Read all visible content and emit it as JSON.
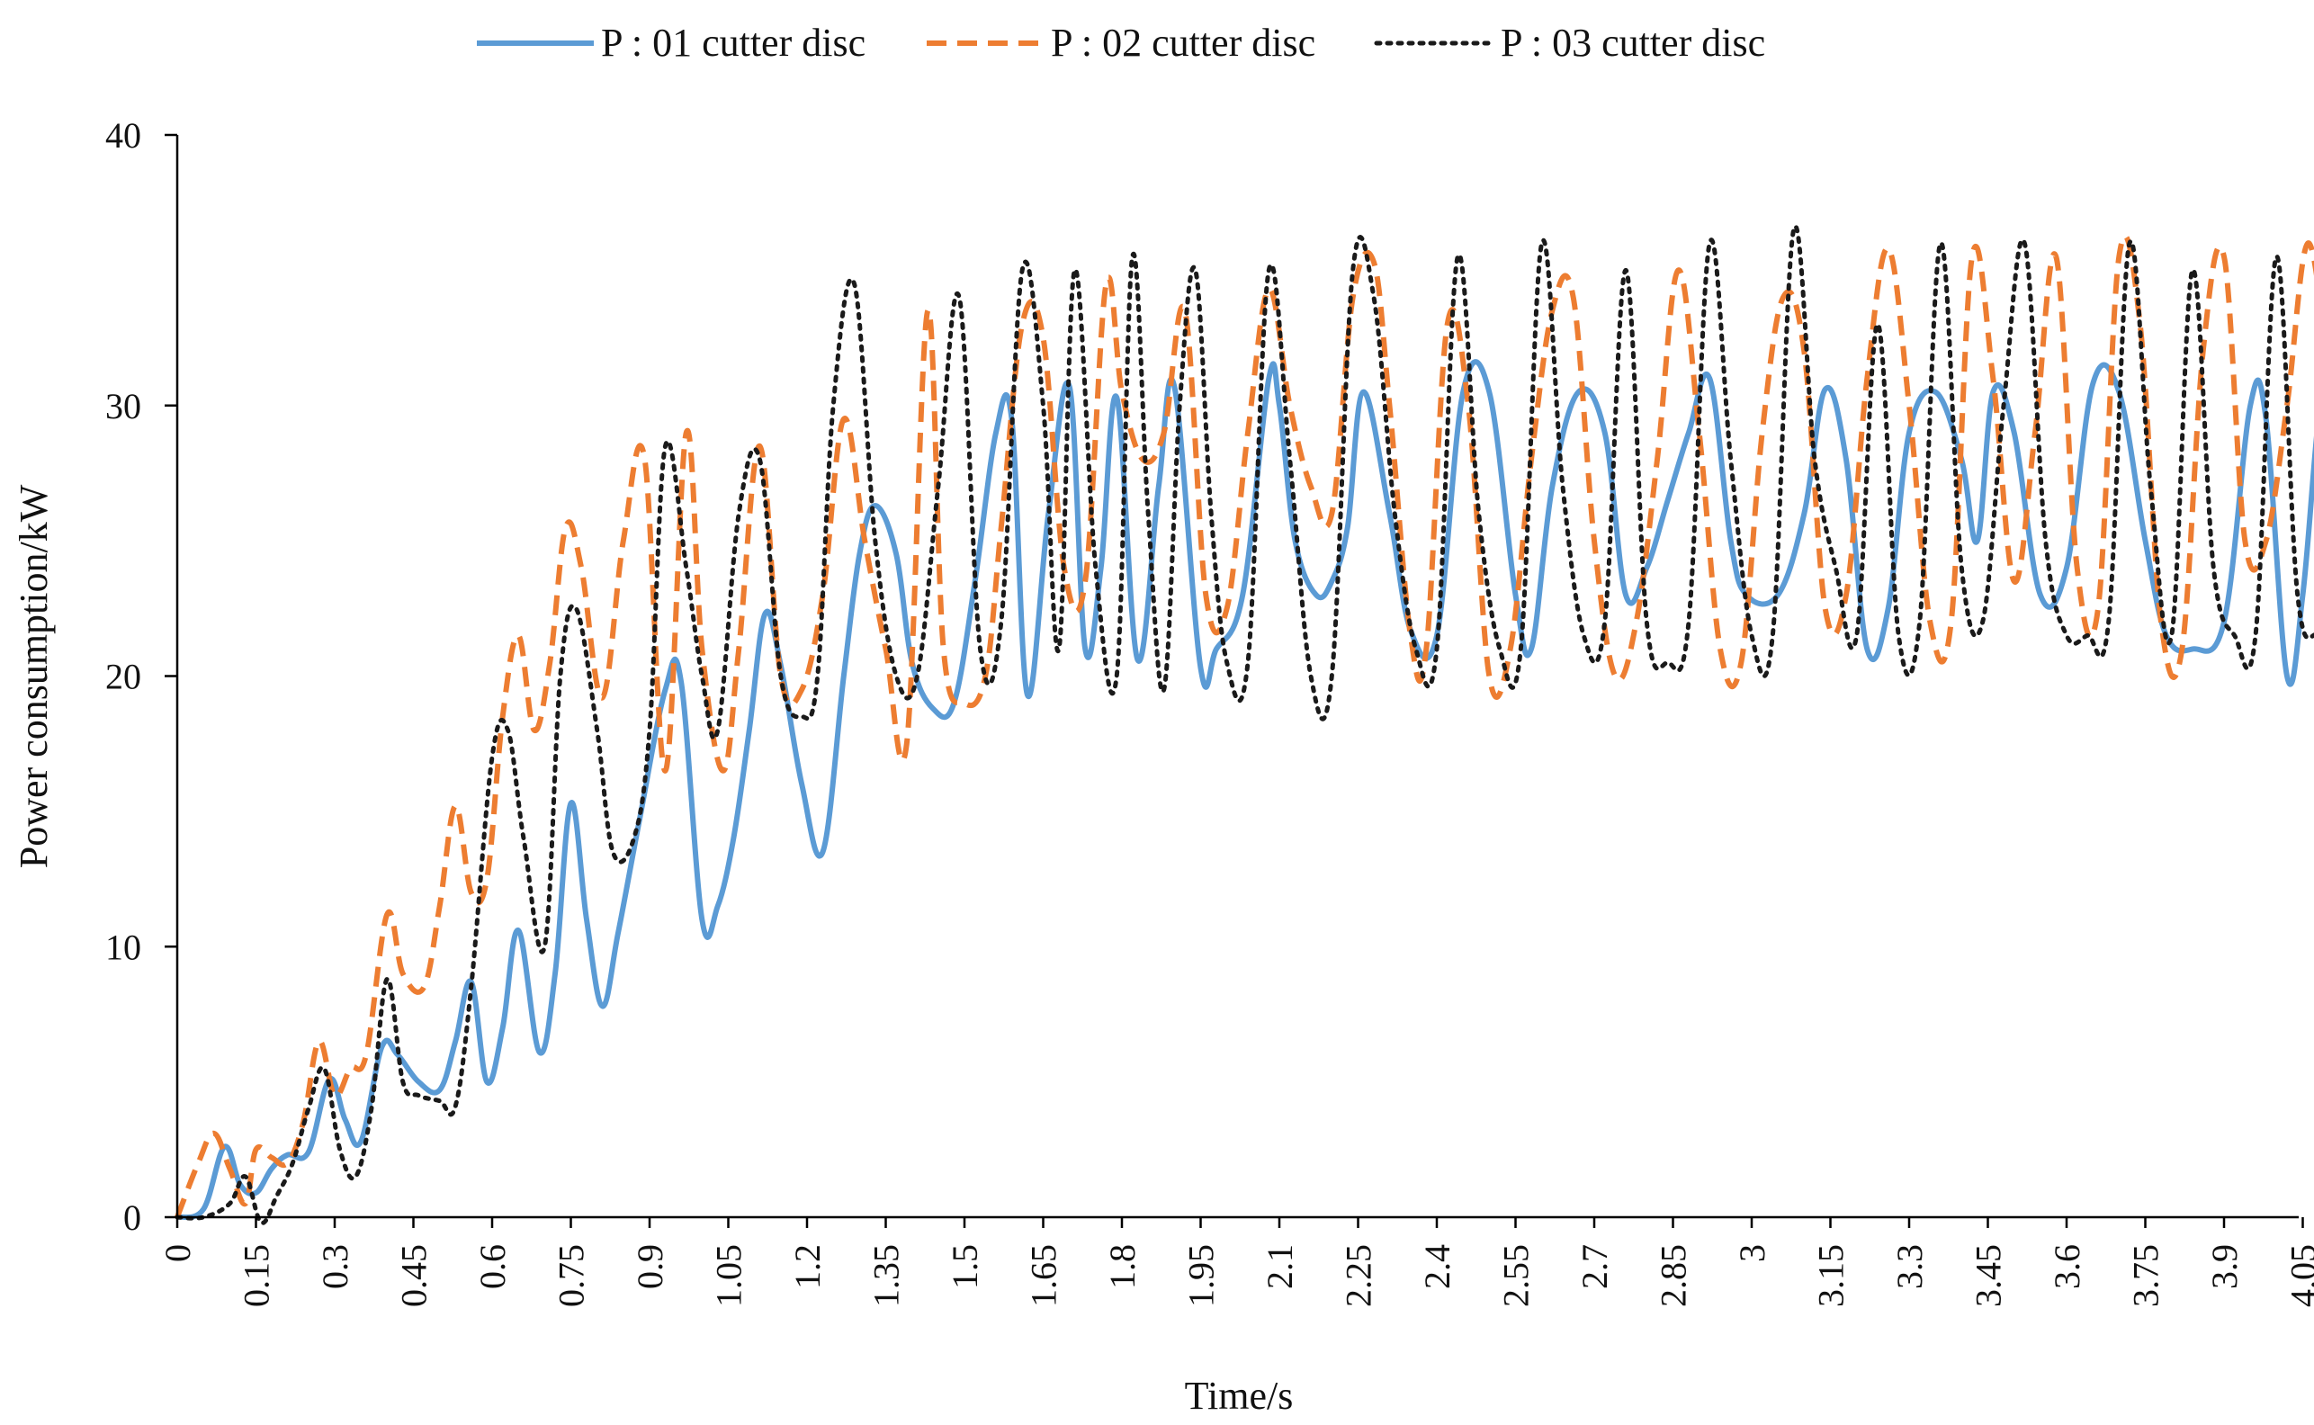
{
  "chart_data": {
    "type": "line",
    "title": "",
    "xlabel": "Time/s",
    "ylabel": "Power consumption/kW",
    "xlim": [
      0,
      4.15
    ],
    "ylim": [
      0,
      40
    ],
    "grid": false,
    "legend_position": "top-center",
    "x_tick_labels": [
      "0",
      "0.15",
      "0.3",
      "0.45",
      "0.6",
      "0.75",
      "0.9",
      "1.05",
      "1.2",
      "1.35",
      "1.5",
      "1.65",
      "1.8",
      "1.95",
      "2.1",
      "2.25",
      "2.4",
      "2.55",
      "2.7",
      "2.85",
      "3",
      "3.15",
      "3.3",
      "3.45",
      "3.6",
      "3.75",
      "3.9",
      "4.05"
    ],
    "y_tick_labels": [
      "0",
      "10",
      "20",
      "30",
      "40"
    ],
    "series": [
      {
        "name": "P : 01 cutter disc",
        "color": "#5B9BD5",
        "style": "solid",
        "x": [
          0,
          0.05,
          0.09,
          0.12,
          0.15,
          0.18,
          0.21,
          0.25,
          0.29,
          0.32,
          0.35,
          0.39,
          0.42,
          0.46,
          0.5,
          0.53,
          0.56,
          0.59,
          0.62,
          0.65,
          0.69,
          0.72,
          0.75,
          0.78,
          0.81,
          0.84,
          0.88,
          0.93,
          0.96,
          1.0,
          1.03,
          1.06,
          1.09,
          1.12,
          1.15,
          1.19,
          1.23,
          1.27,
          1.3,
          1.33,
          1.37,
          1.4,
          1.44,
          1.48,
          1.52,
          1.56,
          1.59,
          1.62,
          1.66,
          1.7,
          1.73,
          1.76,
          1.79,
          1.83,
          1.87,
          1.9,
          1.95,
          1.98,
          2.03,
          2.08,
          2.1,
          2.13,
          2.17,
          2.2,
          2.23,
          2.26,
          2.31,
          2.35,
          2.4,
          2.45,
          2.5,
          2.55,
          2.58,
          2.62,
          2.67,
          2.72,
          2.76,
          2.8,
          2.84,
          2.88,
          2.92,
          2.96,
          2.99,
          3.05,
          3.1,
          3.14,
          3.18,
          3.22,
          3.26,
          3.3,
          3.35,
          3.4,
          3.43,
          3.46,
          3.5,
          3.55,
          3.6,
          3.65,
          3.7,
          3.75,
          3.79,
          3.84,
          3.9,
          3.95,
          3.98,
          4.02,
          4.05,
          4.08,
          4.1
        ],
        "y": [
          0,
          0.3,
          2.6,
          1.2,
          0.9,
          1.8,
          2.3,
          2.4,
          5.1,
          3.6,
          2.8,
          6.3,
          6.0,
          5.0,
          4.7,
          6.5,
          8.7,
          5.0,
          7.0,
          10.6,
          6.1,
          9.0,
          15.3,
          11.0,
          7.8,
          10.5,
          14.6,
          19.5,
          19.8,
          11.0,
          11.5,
          14.0,
          18.0,
          22.3,
          20.4,
          16.0,
          13.5,
          20.0,
          24.5,
          26.3,
          24.5,
          20.5,
          18.8,
          19.0,
          23.5,
          29.0,
          29.5,
          19.3,
          26.0,
          30.7,
          21.0,
          24.0,
          30.3,
          20.6,
          27.0,
          30.7,
          20.3,
          21.0,
          23.0,
          31.0,
          30.0,
          25.0,
          23.0,
          23.5,
          25.5,
          30.5,
          26.0,
          21.7,
          21.5,
          30.5,
          30.5,
          23.0,
          21.0,
          27.0,
          30.5,
          29.0,
          23.0,
          24.0,
          26.5,
          29.0,
          31.0,
          25.0,
          23.0,
          23.0,
          26.0,
          30.6,
          28.0,
          21.0,
          22.5,
          29.0,
          30.5,
          28.0,
          25.0,
          30.5,
          29.0,
          23.0,
          24.0,
          30.8,
          30.5,
          25.0,
          21.5,
          21.0,
          22.0,
          30.0,
          29.5,
          20.0,
          23.0,
          29.5,
          30.5
        ]
      },
      {
        "name": "P : 02 cutter disc",
        "color": "#ED7D31",
        "style": "dashed",
        "x": [
          0,
          0.04,
          0.07,
          0.1,
          0.13,
          0.15,
          0.18,
          0.21,
          0.24,
          0.27,
          0.3,
          0.33,
          0.36,
          0.4,
          0.43,
          0.47,
          0.5,
          0.53,
          0.56,
          0.59,
          0.62,
          0.65,
          0.68,
          0.71,
          0.74,
          0.77,
          0.81,
          0.85,
          0.89,
          0.93,
          0.97,
          1.0,
          1.04,
          1.07,
          1.11,
          1.15,
          1.19,
          1.23,
          1.27,
          1.31,
          1.35,
          1.39,
          1.43,
          1.46,
          1.5,
          1.54,
          1.57,
          1.61,
          1.65,
          1.69,
          1.73,
          1.77,
          1.8,
          1.84,
          1.88,
          1.92,
          1.96,
          2.0,
          2.04,
          2.08,
          2.12,
          2.16,
          2.2,
          2.24,
          2.28,
          2.31,
          2.35,
          2.38,
          2.42,
          2.46,
          2.5,
          2.54,
          2.58,
          2.62,
          2.66,
          2.7,
          2.74,
          2.78,
          2.82,
          2.86,
          2.9,
          2.94,
          2.98,
          3.02,
          3.06,
          3.1,
          3.14,
          3.18,
          3.22,
          3.26,
          3.3,
          3.34,
          3.38,
          3.42,
          3.46,
          3.5,
          3.54,
          3.58,
          3.62,
          3.66,
          3.7,
          3.74,
          3.78,
          3.82,
          3.86,
          3.9,
          3.94,
          3.98,
          4.02,
          4.06,
          4.1
        ],
        "y": [
          0,
          2.0,
          3.1,
          1.8,
          0.5,
          2.5,
          2.2,
          2.0,
          3.5,
          6.5,
          4.5,
          5.5,
          6.0,
          11.2,
          9.0,
          8.5,
          11.5,
          15.2,
          12.0,
          12.5,
          18.5,
          21.5,
          18.0,
          20.5,
          25.5,
          24.0,
          19.2,
          25.0,
          28.1,
          16.5,
          29.0,
          21.0,
          16.5,
          21.0,
          28.5,
          20.0,
          19.5,
          23.0,
          29.5,
          25.0,
          21.0,
          17.5,
          33.5,
          21.0,
          19.0,
          20.0,
          25.5,
          33.0,
          32.5,
          24.0,
          23.5,
          34.5,
          30.5,
          28.0,
          29.0,
          33.5,
          23.0,
          22.5,
          29.0,
          34.3,
          30.0,
          27.0,
          26.0,
          34.0,
          35.3,
          30.0,
          21.5,
          21.0,
          33.0,
          30.0,
          20.0,
          21.0,
          28.0,
          33.5,
          34.0,
          25.0,
          20.0,
          22.0,
          28.0,
          35.0,
          29.0,
          21.0,
          20.5,
          29.0,
          34.0,
          32.0,
          22.5,
          23.0,
          31.0,
          35.8,
          30.0,
          22.0,
          22.0,
          35.5,
          31.0,
          23.5,
          29.0,
          35.5,
          24.0,
          22.5,
          35.5,
          33.0,
          22.0,
          21.0,
          32.0,
          35.5,
          25.0,
          25.0,
          30.0,
          36.0,
          31.0
        ]
      },
      {
        "name": "P : 03 cutter disc",
        "color": "#1A1A1A",
        "style": "dotted",
        "x": [
          0,
          0.05,
          0.1,
          0.13,
          0.16,
          0.19,
          0.22,
          0.25,
          0.28,
          0.31,
          0.34,
          0.37,
          0.4,
          0.43,
          0.46,
          0.5,
          0.53,
          0.56,
          0.6,
          0.63,
          0.66,
          0.7,
          0.73,
          0.76,
          0.8,
          0.83,
          0.87,
          0.9,
          0.93,
          0.97,
          1.0,
          1.03,
          1.07,
          1.11,
          1.15,
          1.19,
          1.22,
          1.25,
          1.29,
          1.33,
          1.37,
          1.41,
          1.45,
          1.49,
          1.53,
          1.57,
          1.61,
          1.65,
          1.68,
          1.71,
          1.75,
          1.79,
          1.82,
          1.85,
          1.88,
          1.91,
          1.94,
          1.97,
          2.0,
          2.04,
          2.08,
          2.12,
          2.16,
          2.2,
          2.24,
          2.28,
          2.32,
          2.36,
          2.4,
          2.44,
          2.48,
          2.52,
          2.56,
          2.6,
          2.64,
          2.68,
          2.72,
          2.76,
          2.8,
          2.84,
          2.88,
          2.92,
          2.96,
          3.0,
          3.04,
          3.08,
          3.12,
          3.16,
          3.2,
          3.24,
          3.28,
          3.32,
          3.36,
          3.4,
          3.44,
          3.48,
          3.52,
          3.56,
          3.6,
          3.64,
          3.68,
          3.72,
          3.76,
          3.8,
          3.84,
          3.88,
          3.92,
          3.96,
          4.0,
          4.04,
          4.08,
          4.12
        ],
        "y": [
          0,
          0,
          0.5,
          1.5,
          -0.2,
          0.8,
          2.0,
          4.0,
          5.5,
          2.5,
          1.5,
          4.0,
          8.8,
          5.0,
          4.5,
          4.3,
          4.1,
          8.5,
          17.0,
          18.0,
          14.0,
          10.0,
          20.0,
          22.5,
          18.0,
          13.5,
          14.0,
          18.0,
          28.5,
          24.0,
          20.0,
          18.0,
          26.0,
          28.0,
          20.0,
          18.5,
          20.0,
          30.0,
          34.5,
          25.0,
          20.0,
          20.0,
          27.0,
          34.0,
          21.0,
          22.0,
          35.0,
          30.0,
          21.0,
          35.0,
          24.0,
          20.0,
          35.5,
          26.0,
          19.5,
          30.0,
          35.0,
          26.0,
          20.5,
          20.5,
          35.0,
          28.0,
          20.0,
          20.0,
          35.0,
          34.0,
          26.0,
          21.0,
          21.0,
          35.5,
          26.0,
          21.0,
          21.0,
          36.0,
          27.0,
          21.5,
          22.0,
          35.0,
          22.0,
          20.5,
          22.0,
          36.0,
          28.0,
          21.5,
          21.5,
          36.5,
          28.0,
          24.0,
          21.5,
          33.0,
          21.5,
          22.0,
          36.0,
          24.0,
          22.0,
          30.0,
          36.0,
          25.0,
          21.5,
          21.5,
          22.0,
          36.0,
          27.0,
          21.5,
          35.0,
          24.0,
          21.5,
          21.5,
          35.5,
          23.0,
          21.5,
          21.5
        ]
      }
    ]
  }
}
